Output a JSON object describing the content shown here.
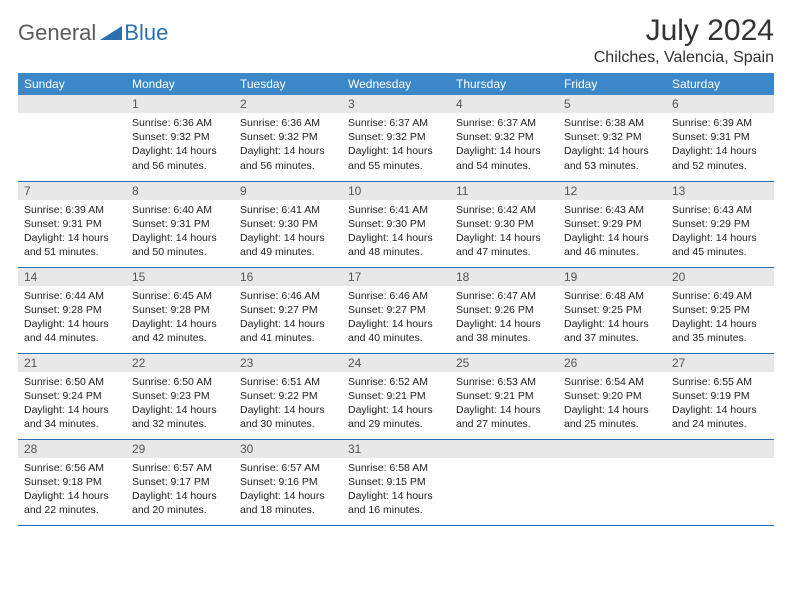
{
  "logo": {
    "part1": "General",
    "part2": "Blue"
  },
  "title": "July 2024",
  "location": "Chilches, Valencia, Spain",
  "weekdays": [
    "Sunday",
    "Monday",
    "Tuesday",
    "Wednesday",
    "Thursday",
    "Friday",
    "Saturday"
  ],
  "colors": {
    "header_bg": "#3b87c8",
    "row_border": "#2b6fb0",
    "daynum_bg": "#e8e8e8",
    "logo_gray": "#5a5a5a",
    "logo_blue": "#2b6fb0"
  },
  "weeks": [
    [
      {
        "n": "",
        "sunrise": "",
        "sunset": "",
        "daylight": ""
      },
      {
        "n": "1",
        "sunrise": "Sunrise: 6:36 AM",
        "sunset": "Sunset: 9:32 PM",
        "daylight": "Daylight: 14 hours and 56 minutes."
      },
      {
        "n": "2",
        "sunrise": "Sunrise: 6:36 AM",
        "sunset": "Sunset: 9:32 PM",
        "daylight": "Daylight: 14 hours and 56 minutes."
      },
      {
        "n": "3",
        "sunrise": "Sunrise: 6:37 AM",
        "sunset": "Sunset: 9:32 PM",
        "daylight": "Daylight: 14 hours and 55 minutes."
      },
      {
        "n": "4",
        "sunrise": "Sunrise: 6:37 AM",
        "sunset": "Sunset: 9:32 PM",
        "daylight": "Daylight: 14 hours and 54 minutes."
      },
      {
        "n": "5",
        "sunrise": "Sunrise: 6:38 AM",
        "sunset": "Sunset: 9:32 PM",
        "daylight": "Daylight: 14 hours and 53 minutes."
      },
      {
        "n": "6",
        "sunrise": "Sunrise: 6:39 AM",
        "sunset": "Sunset: 9:31 PM",
        "daylight": "Daylight: 14 hours and 52 minutes."
      }
    ],
    [
      {
        "n": "7",
        "sunrise": "Sunrise: 6:39 AM",
        "sunset": "Sunset: 9:31 PM",
        "daylight": "Daylight: 14 hours and 51 minutes."
      },
      {
        "n": "8",
        "sunrise": "Sunrise: 6:40 AM",
        "sunset": "Sunset: 9:31 PM",
        "daylight": "Daylight: 14 hours and 50 minutes."
      },
      {
        "n": "9",
        "sunrise": "Sunrise: 6:41 AM",
        "sunset": "Sunset: 9:30 PM",
        "daylight": "Daylight: 14 hours and 49 minutes."
      },
      {
        "n": "10",
        "sunrise": "Sunrise: 6:41 AM",
        "sunset": "Sunset: 9:30 PM",
        "daylight": "Daylight: 14 hours and 48 minutes."
      },
      {
        "n": "11",
        "sunrise": "Sunrise: 6:42 AM",
        "sunset": "Sunset: 9:30 PM",
        "daylight": "Daylight: 14 hours and 47 minutes."
      },
      {
        "n": "12",
        "sunrise": "Sunrise: 6:43 AM",
        "sunset": "Sunset: 9:29 PM",
        "daylight": "Daylight: 14 hours and 46 minutes."
      },
      {
        "n": "13",
        "sunrise": "Sunrise: 6:43 AM",
        "sunset": "Sunset: 9:29 PM",
        "daylight": "Daylight: 14 hours and 45 minutes."
      }
    ],
    [
      {
        "n": "14",
        "sunrise": "Sunrise: 6:44 AM",
        "sunset": "Sunset: 9:28 PM",
        "daylight": "Daylight: 14 hours and 44 minutes."
      },
      {
        "n": "15",
        "sunrise": "Sunrise: 6:45 AM",
        "sunset": "Sunset: 9:28 PM",
        "daylight": "Daylight: 14 hours and 42 minutes."
      },
      {
        "n": "16",
        "sunrise": "Sunrise: 6:46 AM",
        "sunset": "Sunset: 9:27 PM",
        "daylight": "Daylight: 14 hours and 41 minutes."
      },
      {
        "n": "17",
        "sunrise": "Sunrise: 6:46 AM",
        "sunset": "Sunset: 9:27 PM",
        "daylight": "Daylight: 14 hours and 40 minutes."
      },
      {
        "n": "18",
        "sunrise": "Sunrise: 6:47 AM",
        "sunset": "Sunset: 9:26 PM",
        "daylight": "Daylight: 14 hours and 38 minutes."
      },
      {
        "n": "19",
        "sunrise": "Sunrise: 6:48 AM",
        "sunset": "Sunset: 9:25 PM",
        "daylight": "Daylight: 14 hours and 37 minutes."
      },
      {
        "n": "20",
        "sunrise": "Sunrise: 6:49 AM",
        "sunset": "Sunset: 9:25 PM",
        "daylight": "Daylight: 14 hours and 35 minutes."
      }
    ],
    [
      {
        "n": "21",
        "sunrise": "Sunrise: 6:50 AM",
        "sunset": "Sunset: 9:24 PM",
        "daylight": "Daylight: 14 hours and 34 minutes."
      },
      {
        "n": "22",
        "sunrise": "Sunrise: 6:50 AM",
        "sunset": "Sunset: 9:23 PM",
        "daylight": "Daylight: 14 hours and 32 minutes."
      },
      {
        "n": "23",
        "sunrise": "Sunrise: 6:51 AM",
        "sunset": "Sunset: 9:22 PM",
        "daylight": "Daylight: 14 hours and 30 minutes."
      },
      {
        "n": "24",
        "sunrise": "Sunrise: 6:52 AM",
        "sunset": "Sunset: 9:21 PM",
        "daylight": "Daylight: 14 hours and 29 minutes."
      },
      {
        "n": "25",
        "sunrise": "Sunrise: 6:53 AM",
        "sunset": "Sunset: 9:21 PM",
        "daylight": "Daylight: 14 hours and 27 minutes."
      },
      {
        "n": "26",
        "sunrise": "Sunrise: 6:54 AM",
        "sunset": "Sunset: 9:20 PM",
        "daylight": "Daylight: 14 hours and 25 minutes."
      },
      {
        "n": "27",
        "sunrise": "Sunrise: 6:55 AM",
        "sunset": "Sunset: 9:19 PM",
        "daylight": "Daylight: 14 hours and 24 minutes."
      }
    ],
    [
      {
        "n": "28",
        "sunrise": "Sunrise: 6:56 AM",
        "sunset": "Sunset: 9:18 PM",
        "daylight": "Daylight: 14 hours and 22 minutes."
      },
      {
        "n": "29",
        "sunrise": "Sunrise: 6:57 AM",
        "sunset": "Sunset: 9:17 PM",
        "daylight": "Daylight: 14 hours and 20 minutes."
      },
      {
        "n": "30",
        "sunrise": "Sunrise: 6:57 AM",
        "sunset": "Sunset: 9:16 PM",
        "daylight": "Daylight: 14 hours and 18 minutes."
      },
      {
        "n": "31",
        "sunrise": "Sunrise: 6:58 AM",
        "sunset": "Sunset: 9:15 PM",
        "daylight": "Daylight: 14 hours and 16 minutes."
      },
      {
        "n": "",
        "sunrise": "",
        "sunset": "",
        "daylight": ""
      },
      {
        "n": "",
        "sunrise": "",
        "sunset": "",
        "daylight": ""
      },
      {
        "n": "",
        "sunrise": "",
        "sunset": "",
        "daylight": ""
      }
    ]
  ]
}
